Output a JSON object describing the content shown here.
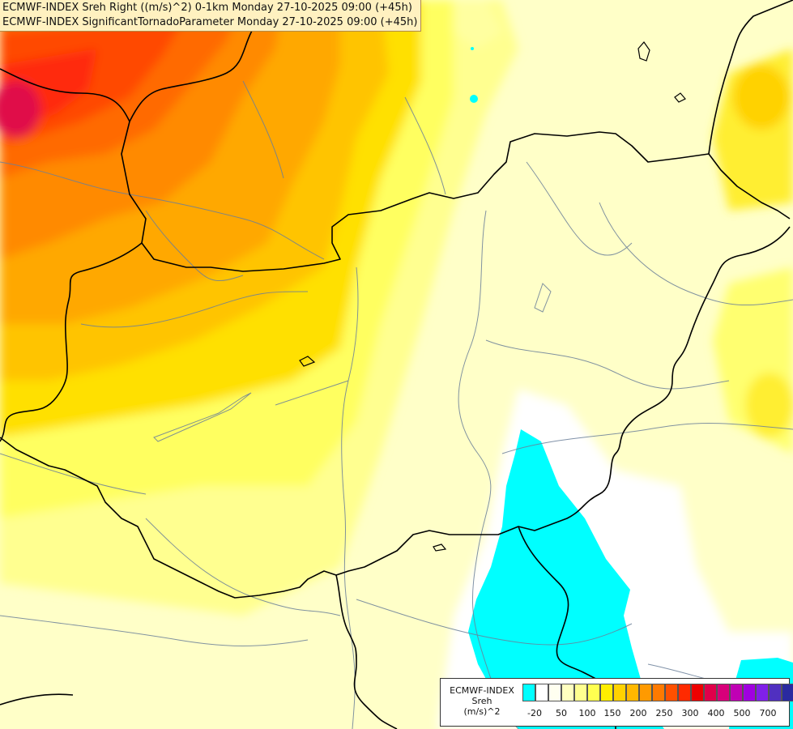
{
  "title_lines": [
    "ECMWF-INDEX Sreh Right ((m/s)^2) 0-1km Monday 27-10-2025 09:00 (+45h)",
    "ECMWF-INDEX SignificantTornadoParameter Monday 27-10-2025 09:00 (+45h)"
  ],
  "legend": {
    "model": "ECMWF-INDEX",
    "variable": "Sreh",
    "unit": "(m/s)^2",
    "colors": [
      "#00ffff",
      "#ffffff",
      "#fffff0",
      "#ffffc0",
      "#ffff90",
      "#ffff50",
      "#ffee00",
      "#ffd200",
      "#ffb800",
      "#ff9a00",
      "#ff7a00",
      "#ff5000",
      "#ff2a00",
      "#ee0000",
      "#e0004a",
      "#d8007a",
      "#c000b4",
      "#a000e0",
      "#8020e8",
      "#5030c0",
      "#2a2aa0",
      "#0a0a78"
    ],
    "tick_labels": [
      "-20",
      "50",
      "100",
      "150",
      "200",
      "250",
      "300",
      "400",
      "500",
      "700"
    ]
  }
}
